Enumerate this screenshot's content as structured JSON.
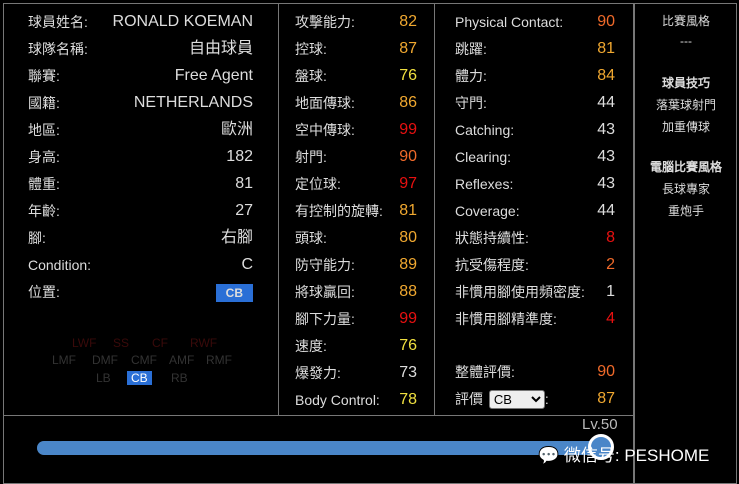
{
  "profile": [
    {
      "label": "球員姓名:",
      "value": "RONALD KOEMAN"
    },
    {
      "label": "球隊名稱:",
      "value": "自由球員"
    },
    {
      "label": "聯賽:",
      "value": "Free Agent"
    },
    {
      "label": "國籍:",
      "value": "NETHERLANDS"
    },
    {
      "label": "地區:",
      "value": "歐洲"
    },
    {
      "label": "身高:",
      "value": "182"
    },
    {
      "label": "體重:",
      "value": "81"
    },
    {
      "label": "年齡:",
      "value": "27"
    },
    {
      "label": "腳:",
      "value": "右腳"
    },
    {
      "label": "Condition:",
      "value": "C"
    },
    {
      "label": "位置:",
      "value": "CB"
    }
  ],
  "position_map": {
    "row1": [
      "LWF",
      "SS",
      "CF",
      "RWF"
    ],
    "row2": [
      "LMF",
      "DMF",
      "CMF",
      "AMF",
      "RMF"
    ],
    "row3": [
      "LB",
      "CB",
      "RB"
    ],
    "selected": "CB"
  },
  "stats_mid": [
    {
      "label": "攻擊能力:",
      "value": "82",
      "color": "#f0a830"
    },
    {
      "label": "控球:",
      "value": "87",
      "color": "#f0a830"
    },
    {
      "label": "盤球:",
      "value": "76",
      "color": "#f0e040"
    },
    {
      "label": "地面傳球:",
      "value": "86",
      "color": "#f0a830"
    },
    {
      "label": "空中傳球:",
      "value": "99",
      "color": "#e81010"
    },
    {
      "label": "射門:",
      "value": "90",
      "color": "#f06a2a"
    },
    {
      "label": "定位球:",
      "value": "97",
      "color": "#e81010"
    },
    {
      "label": "有控制的旋轉:",
      "value": "81",
      "color": "#f0a830"
    },
    {
      "label": "頭球:",
      "value": "80",
      "color": "#f0a830"
    },
    {
      "label": "防守能力:",
      "value": "89",
      "color": "#f0a830"
    },
    {
      "label": "將球贏回:",
      "value": "88",
      "color": "#f0a830"
    },
    {
      "label": "腳下力量:",
      "value": "99",
      "color": "#e81010"
    },
    {
      "label": "速度:",
      "value": "76",
      "color": "#f0e040"
    },
    {
      "label": "爆發力:",
      "value": "73",
      "color": "#dddddd"
    },
    {
      "label": "Body Control:",
      "value": "78",
      "color": "#f0e040"
    }
  ],
  "stats_right": [
    {
      "label": "Physical Contact:",
      "value": "90",
      "color": "#f06a2a"
    },
    {
      "label": "跳躍:",
      "value": "81",
      "color": "#f0a830"
    },
    {
      "label": "體力:",
      "value": "84",
      "color": "#f0a830"
    },
    {
      "label": "守門:",
      "value": "44",
      "color": "#dddddd"
    },
    {
      "label": "Catching:",
      "value": "43",
      "color": "#dddddd"
    },
    {
      "label": "Clearing:",
      "value": "43",
      "color": "#dddddd"
    },
    {
      "label": "Reflexes:",
      "value": "43",
      "color": "#dddddd"
    },
    {
      "label": "Coverage:",
      "value": "44",
      "color": "#dddddd"
    },
    {
      "label": "狀態持續性:",
      "value": "8",
      "color": "#e81010"
    },
    {
      "label": "抗受傷程度:",
      "value": "2",
      "color": "#f06a2a"
    },
    {
      "label": "非慣用腳使用頻密度:",
      "value": "1",
      "color": "#dddddd"
    },
    {
      "label": "非慣用腳精準度:",
      "value": "4",
      "color": "#e81010"
    }
  ],
  "overall": {
    "label": "整體評價:",
    "value": "90",
    "color": "#f06a2a"
  },
  "rating": {
    "label": "評價",
    "select": "CB",
    "suffix": ":",
    "value": "87",
    "color": "#f0a830"
  },
  "side": {
    "style_title": "比賽風格",
    "style_value": "---",
    "skills_title": "球員技巧",
    "skills": [
      "落葉球射門",
      "加重傳球"
    ],
    "ai_title": "電腦比賽風格",
    "ai": [
      "長球專家",
      "重炮手"
    ]
  },
  "level": {
    "label": "Lv.50",
    "progress": 1.0
  },
  "watermark": "微信号: PESHOME"
}
